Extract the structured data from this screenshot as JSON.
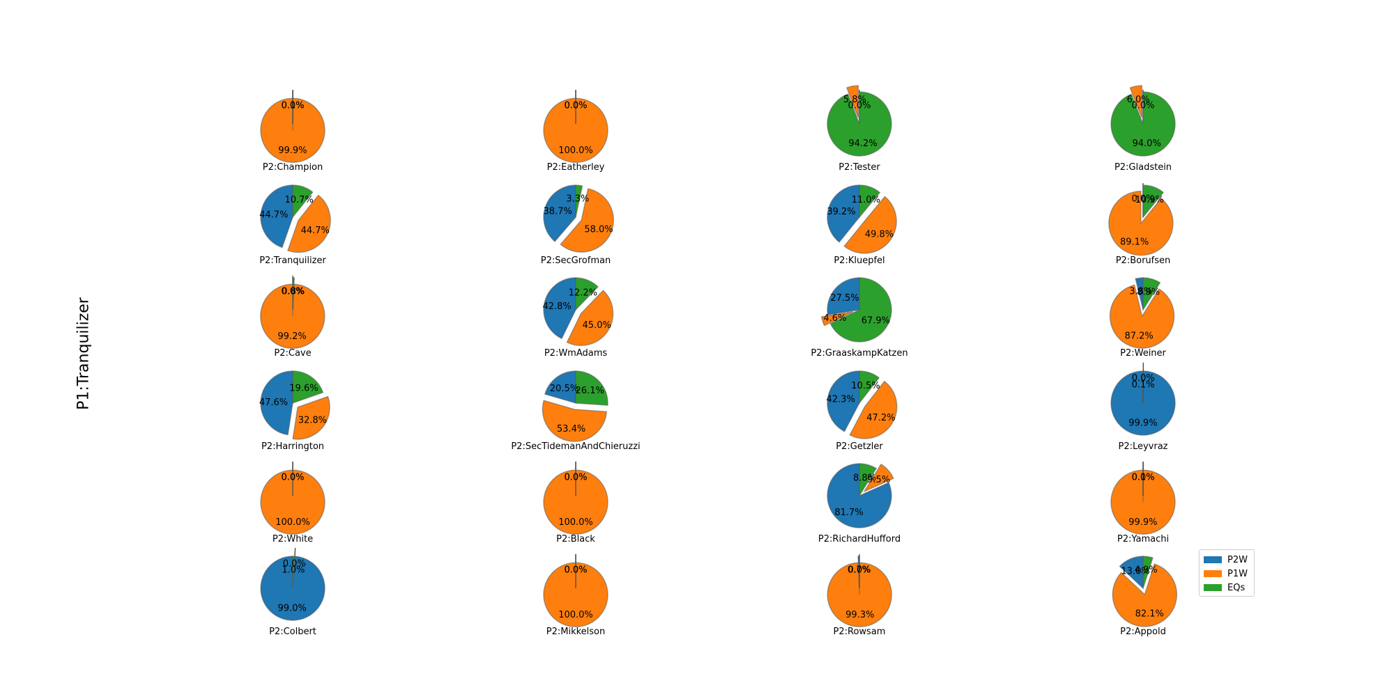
{
  "figure": {
    "ylabel": "P1:Tranquilizer"
  },
  "legend": {
    "labels": [
      "P2W",
      "P1W",
      "EQs"
    ]
  },
  "colors": {
    "P2W": "#1f77b4",
    "P1W": "#ff7f0e",
    "EQs": "#2ca02c"
  },
  "chart_data": {
    "type": "pie",
    "series_names": [
      "P2W",
      "P1W",
      "EQs"
    ],
    "pies": [
      {
        "label": "P2:Champion",
        "values": [
          0.0,
          99.9,
          0.1
        ]
      },
      {
        "label": "P2:Eatherley",
        "values": [
          0.0,
          100.0,
          0.0
        ]
      },
      {
        "label": "P2:Tester",
        "values": [
          0.0,
          5.8,
          94.2
        ]
      },
      {
        "label": "P2:Gladstein",
        "values": [
          0.0,
          6.0,
          94.0
        ]
      },
      {
        "label": "P2:Tranquilizer",
        "values": [
          44.7,
          44.7,
          10.7
        ]
      },
      {
        "label": "P2:SecGrofman",
        "values": [
          38.7,
          58.0,
          3.3
        ]
      },
      {
        "label": "P2:Kluepfel",
        "values": [
          39.2,
          49.8,
          11.0
        ]
      },
      {
        "label": "P2:Borufsen",
        "values": [
          0.0,
          89.1,
          10.9
        ]
      },
      {
        "label": "P2:Cave",
        "values": [
          0.0,
          99.2,
          0.8
        ]
      },
      {
        "label": "P2:WmAdams",
        "values": [
          42.8,
          45.0,
          12.2
        ]
      },
      {
        "label": "P2:GraaskampKatzen",
        "values": [
          27.5,
          4.6,
          67.9
        ]
      },
      {
        "label": "P2:Weiner",
        "values": [
          3.8,
          87.2,
          8.9
        ]
      },
      {
        "label": "P2:Harrington",
        "values": [
          47.6,
          32.8,
          19.6
        ]
      },
      {
        "label": "P2:SecTidemanAndChieruzzi",
        "values": [
          20.5,
          53.4,
          26.1
        ]
      },
      {
        "label": "P2:Getzler",
        "values": [
          42.3,
          47.2,
          10.5
        ]
      },
      {
        "label": "P2:Leyvraz",
        "values": [
          99.9,
          0.0,
          0.1
        ]
      },
      {
        "label": "P2:White",
        "values": [
          0.0,
          100.0,
          0.0
        ]
      },
      {
        "label": "P2:Black",
        "values": [
          0.0,
          100.0,
          0.0
        ]
      },
      {
        "label": "P2:RichardHufford",
        "values": [
          81.7,
          9.5,
          8.8
        ]
      },
      {
        "label": "P2:Yamachi",
        "values": [
          0.0,
          99.9,
          0.1
        ]
      },
      {
        "label": "P2:Colbert",
        "values": [
          99.0,
          0.0,
          1.0
        ]
      },
      {
        "label": "P2:Mikkelson",
        "values": [
          0.0,
          100.0,
          0.0
        ]
      },
      {
        "label": "P2:Rowsam",
        "values": [
          0.7,
          99.3,
          0.0
        ]
      },
      {
        "label": "P2:Appold",
        "values": [
          13.0,
          82.1,
          4.9
        ]
      }
    ]
  }
}
